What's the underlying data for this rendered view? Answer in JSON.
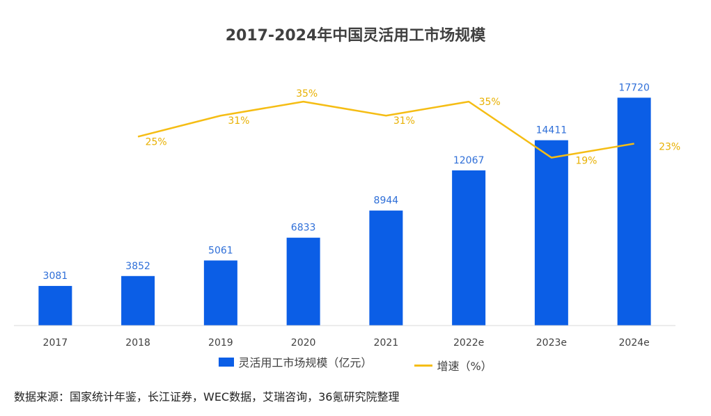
{
  "chart_data": {
    "type": "bar",
    "title": "2017-2024年中国灵活用工市场规模",
    "categories": [
      "2017",
      "2018",
      "2019",
      "2020",
      "2021",
      "2022e",
      "2023e",
      "2024e"
    ],
    "series": [
      {
        "name": "灵活用工市场规模（亿元）",
        "kind": "bar",
        "values": [
          3081,
          3852,
          5061,
          6833,
          8944,
          12067,
          14411,
          17720
        ],
        "labels": [
          "3081",
          "3852",
          "5061",
          "6833",
          "8944",
          "12067",
          "14411",
          "17720"
        ]
      },
      {
        "name": "增速（%）",
        "kind": "line",
        "values": [
          null,
          25,
          31,
          35,
          31,
          35,
          19,
          23
        ],
        "labels": [
          "",
          "25%",
          "31%",
          "35%",
          "31%",
          "35%",
          "19%",
          "23%"
        ]
      }
    ],
    "ylim_bar": [
      0,
      18500
    ],
    "ylim_line": [
      -29,
      39
    ],
    "grid": false,
    "legend_position": "bottom"
  },
  "source_note": "数据来源：国家统计年鉴，长江证券，WEC数据，艾瑞咨询，36氪研究院整理",
  "colors": {
    "bar": "#0b5ee6",
    "line": "#f5bd14",
    "bar_label": "#2f6fd8",
    "line_label": "#e8b000"
  }
}
